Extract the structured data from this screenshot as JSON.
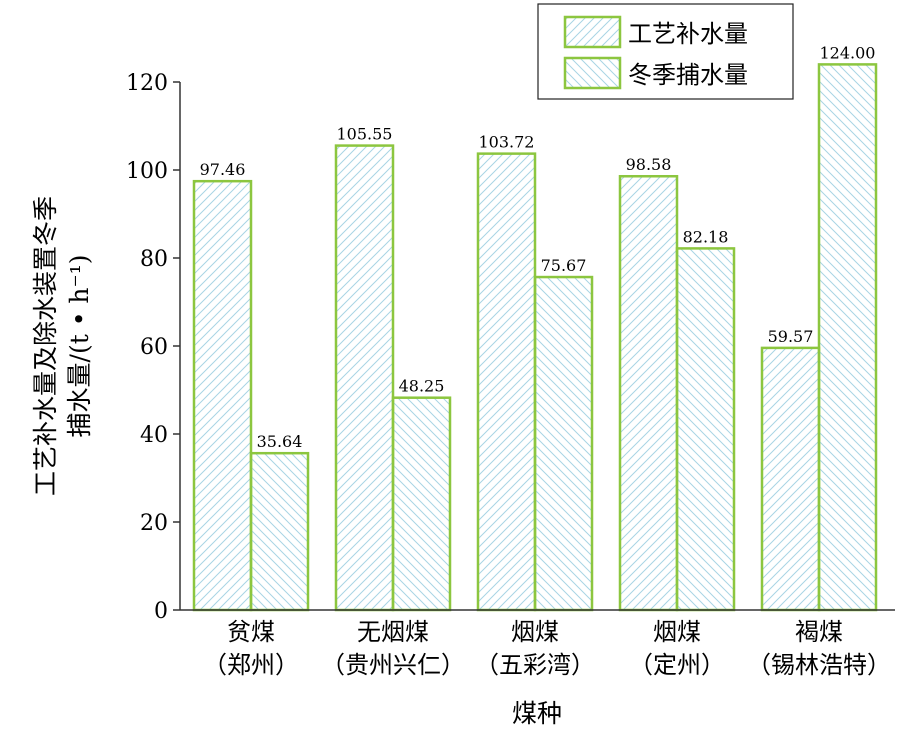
{
  "chart_data": {
    "type": "bar",
    "title": "",
    "xlabel": "煤种",
    "ylabel_lines": [
      "工艺补水量及除水装置冬季",
      "捕水量/(t • h⁻¹)"
    ],
    "categories": [
      [
        "贫煤",
        "（郑州）"
      ],
      [
        "无烟煤",
        "（贵州兴仁）"
      ],
      [
        "烟煤",
        "（五彩湾）"
      ],
      [
        "烟煤",
        "（定州）"
      ],
      [
        "褐煤",
        "（锡林浩特）"
      ]
    ],
    "series": [
      {
        "name": "工艺补水量",
        "values": [
          97.46,
          105.55,
          103.72,
          98.58,
          59.57
        ],
        "value_labels": [
          "97.46",
          "105.55",
          "103.72",
          "98.58",
          "59.57"
        ]
      },
      {
        "name": "冬季捕水量",
        "values": [
          35.64,
          48.25,
          75.67,
          82.18,
          124.0
        ],
        "value_labels": [
          "35.64",
          "48.25",
          "75.67",
          "82.18",
          "124.00"
        ]
      }
    ],
    "ylim": [
      0,
      120
    ],
    "yticks": [
      "0",
      "20",
      "40",
      "60",
      "80",
      "100",
      "120"
    ],
    "grid": false,
    "legend_position": "top-right",
    "colors": {
      "bar_stroke": "#8cc63f",
      "hatch": "#a8d4e4",
      "axis": "#333333"
    }
  }
}
